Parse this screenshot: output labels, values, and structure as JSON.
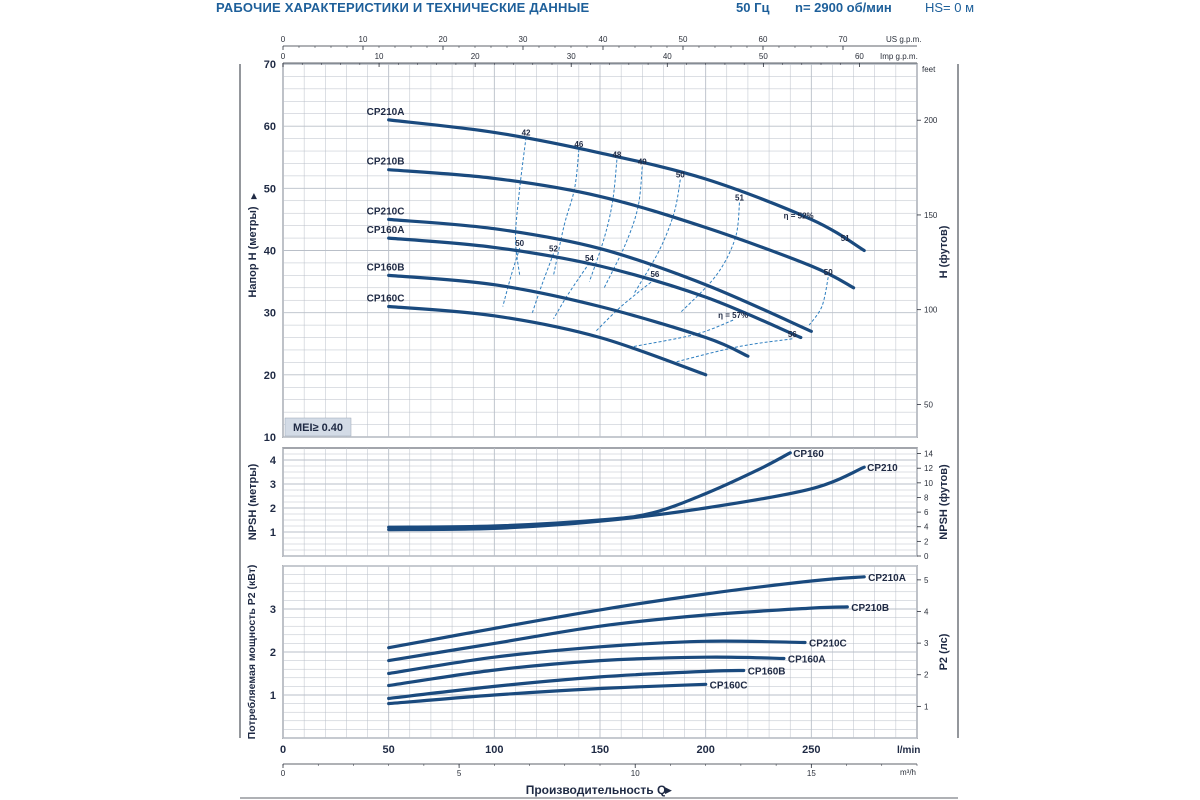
{
  "header": {
    "title": "РАБОЧИЕ ХАРАКТЕРИСТИКИ И ТЕХНИЧЕСКИЕ ДАННЫЕ",
    "frequency": "50 Гц",
    "speed": "n= 2900 об/мин",
    "hs": "HS= 0 м"
  },
  "colors": {
    "curve": "#1a4a7e",
    "efficiency": "#2f7fc0",
    "grid": "#b9bfc8",
    "frame": "#2a2f3a",
    "header": "#1d5f9a"
  },
  "chart_data": [
    {
      "type": "line",
      "ylabel": "Напор H (метры)",
      "y2label": "H (футов)",
      "ylim": [
        10,
        70
      ],
      "xlim": [
        0,
        300
      ],
      "x_unit": "l/min",
      "yticks": [
        10,
        20,
        30,
        40,
        50,
        60,
        70
      ],
      "y2ticks": [
        50,
        100,
        150,
        200
      ],
      "y2unit": "feet",
      "top_axis_us": {
        "label": "US g.p.m.",
        "ticks": [
          0,
          10,
          20,
          30,
          40,
          50,
          60,
          70
        ]
      },
      "top_axis_imp": {
        "label": "Imp g.p.m.",
        "ticks": [
          0,
          10,
          20,
          30,
          40,
          50,
          60
        ]
      },
      "badge": "MEI≥ 0.40",
      "series": [
        {
          "name": "CP210A",
          "x": [
            50,
            100,
            150,
            200,
            250,
            275
          ],
          "y": [
            61,
            59,
            55.7,
            51.5,
            45,
            40
          ]
        },
        {
          "name": "CP210B",
          "x": [
            50,
            100,
            150,
            200,
            250,
            270
          ],
          "y": [
            53,
            51.6,
            48.7,
            43.7,
            37.5,
            34
          ]
        },
        {
          "name": "CP210C",
          "x": [
            50,
            100,
            150,
            200,
            250
          ],
          "y": [
            45,
            43.5,
            40.3,
            34.5,
            27
          ]
        },
        {
          "name": "CP160A",
          "x": [
            50,
            100,
            150,
            200,
            245
          ],
          "y": [
            42,
            40.5,
            37.5,
            32.5,
            26
          ]
        },
        {
          "name": "CP160B",
          "x": [
            50,
            100,
            150,
            200,
            220
          ],
          "y": [
            36,
            34.5,
            31,
            26,
            23
          ]
        },
        {
          "name": "CP160C",
          "x": [
            50,
            100,
            150,
            200
          ],
          "y": [
            31,
            29.5,
            26,
            20
          ]
        }
      ],
      "efficiency_labels": [
        {
          "label": "42",
          "x": 115,
          "y": 58.2
        },
        {
          "label": "46",
          "x": 140,
          "y": 56.3
        },
        {
          "label": "48",
          "x": 158,
          "y": 54.6
        },
        {
          "label": "49",
          "x": 170,
          "y": 53.5
        },
        {
          "label": "50",
          "x": 188,
          "y": 51.4
        },
        {
          "label": "51",
          "x": 216,
          "y": 47.7
        },
        {
          "label": "η = 52%",
          "x": 244,
          "y": 44.8
        },
        {
          "label": "51",
          "x": 266,
          "y": 41.2
        },
        {
          "label": "50",
          "x": 112,
          "y": 40.4
        },
        {
          "label": "52",
          "x": 128,
          "y": 39.5
        },
        {
          "label": "54",
          "x": 145,
          "y": 38.0
        },
        {
          "label": "56",
          "x": 176,
          "y": 35.4
        },
        {
          "label": "50",
          "x": 258,
          "y": 35.7
        },
        {
          "label": "η = 57%",
          "x": 213,
          "y": 28.8
        },
        {
          "label": "56",
          "x": 241,
          "y": 25.8
        }
      ]
    },
    {
      "type": "line",
      "ylabel": "NPSH (метры)",
      "y2label": "NPSH (футов)",
      "ylim": [
        0,
        4.5
      ],
      "xlim": [
        0,
        300
      ],
      "yticks": [
        1,
        2,
        3,
        4
      ],
      "y2ticks": [
        0,
        2,
        4,
        6,
        8,
        10,
        12,
        14
      ],
      "series": [
        {
          "name": "CP160",
          "x": [
            50,
            100,
            150,
            175,
            200,
            225,
            240
          ],
          "y": [
            1.2,
            1.25,
            1.5,
            1.8,
            2.6,
            3.6,
            4.3
          ]
        },
        {
          "name": "CP210",
          "x": [
            50,
            100,
            150,
            200,
            250,
            275
          ],
          "y": [
            1.1,
            1.15,
            1.45,
            2.0,
            2.8,
            3.7
          ]
        }
      ]
    },
    {
      "type": "line",
      "ylabel": "Потребляемая мощность P2 (кВт)",
      "y2label": "P2 (лс)",
      "xlabel": "Производительность Q",
      "ylim": [
        0,
        4
      ],
      "xlim": [
        0,
        300
      ],
      "yticks": [
        1,
        2,
        3
      ],
      "y2ticks": [
        1,
        2,
        3,
        4,
        5
      ],
      "xticks": [
        0,
        50,
        100,
        150,
        200,
        250
      ],
      "x_unit": "l/min",
      "m3h_axis": {
        "label": "m³/h",
        "ticks": [
          0,
          5,
          10,
          15
        ]
      },
      "series": [
        {
          "name": "CP210A",
          "x": [
            50,
            100,
            150,
            200,
            250,
            275
          ],
          "y": [
            2.1,
            2.55,
            2.98,
            3.35,
            3.65,
            3.75
          ]
        },
        {
          "name": "CP210B",
          "x": [
            50,
            100,
            150,
            200,
            250,
            267
          ],
          "y": [
            1.8,
            2.2,
            2.6,
            2.86,
            3.02,
            3.05
          ]
        },
        {
          "name": "CP210C",
          "x": [
            50,
            100,
            150,
            200,
            247
          ],
          "y": [
            1.5,
            1.88,
            2.12,
            2.25,
            2.22
          ]
        },
        {
          "name": "CP160A",
          "x": [
            50,
            100,
            150,
            200,
            237
          ],
          "y": [
            1.22,
            1.58,
            1.8,
            1.88,
            1.85
          ]
        },
        {
          "name": "CP160B",
          "x": [
            50,
            100,
            150,
            200,
            218
          ],
          "y": [
            0.92,
            1.2,
            1.42,
            1.55,
            1.57
          ]
        },
        {
          "name": "CP160C",
          "x": [
            50,
            100,
            150,
            200
          ],
          "y": [
            0.8,
            1.0,
            1.15,
            1.25
          ]
        }
      ]
    }
  ]
}
